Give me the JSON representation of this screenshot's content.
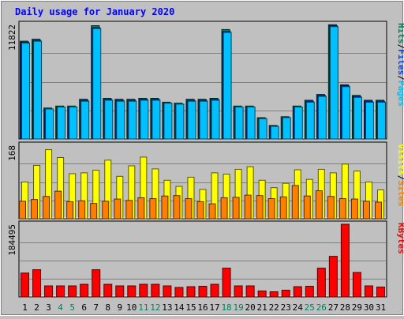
{
  "title": "Daily usage for January 2020",
  "colors": {
    "background": "#c0c0c0",
    "plot_background": "#c0c0c0",
    "title": "#0000ff",
    "hits": "#00805c",
    "files": "#0040ff",
    "pages": "#00c0ff",
    "visits": "#ffff00",
    "sites": "#ff8000",
    "kbytes": "#ff0000",
    "weekend_day": "#00805c",
    "weekday": "#000000"
  },
  "chart_data": [
    {
      "type": "bar",
      "panel": "top",
      "y_max_label": "11822",
      "ylim": [
        0,
        11822
      ],
      "legend": [
        {
          "label": "Pages",
          "color": "#00c0ff"
        },
        {
          "label": "Files",
          "color": "#0040ff"
        },
        {
          "label": "Hits",
          "color": "#00805c"
        }
      ],
      "categories": [
        "1",
        "2",
        "3",
        "4",
        "5",
        "6",
        "7",
        "8",
        "9",
        "10",
        "11",
        "12",
        "13",
        "14",
        "15",
        "16",
        "17",
        "18",
        "19",
        "20",
        "21",
        "22",
        "23",
        "24",
        "25",
        "26",
        "27",
        "28",
        "29",
        "30",
        "31"
      ],
      "series": [
        {
          "name": "Hits",
          "values": [
            10100,
            10300,
            3200,
            3400,
            3400,
            4100,
            11700,
            4200,
            4100,
            4100,
            4200,
            4200,
            3800,
            3700,
            4100,
            4100,
            4200,
            11300,
            3400,
            3400,
            2200,
            1400,
            2300,
            3400,
            4000,
            4600,
            11800,
            5600,
            4500,
            4000,
            4000
          ]
        },
        {
          "name": "Files",
          "values": [
            10000,
            10200,
            3100,
            3300,
            3300,
            4000,
            11500,
            4100,
            4000,
            4000,
            4100,
            4100,
            3700,
            3600,
            4000,
            4000,
            4100,
            11100,
            3300,
            3300,
            2100,
            1300,
            2200,
            3300,
            3900,
            4500,
            11700,
            5500,
            4400,
            3900,
            3900
          ]
        },
        {
          "name": "Pages",
          "values": [
            9900,
            10100,
            3100,
            3300,
            3300,
            3900,
            11400,
            4000,
            3900,
            3900,
            4000,
            4000,
            3700,
            3600,
            3900,
            3900,
            4000,
            11000,
            3300,
            3300,
            2100,
            1300,
            2200,
            3300,
            3800,
            4400,
            11600,
            5400,
            4300,
            3800,
            3800
          ]
        }
      ]
    },
    {
      "type": "bar",
      "panel": "middle",
      "y_max_label": "168",
      "ylim": [
        0,
        168
      ],
      "legend": [
        {
          "label": "Sites",
          "color": "#ff8000"
        },
        {
          "label": "Visits",
          "color": "#ffff00"
        }
      ],
      "categories": [
        "1",
        "2",
        "3",
        "4",
        "5",
        "6",
        "7",
        "8",
        "9",
        "10",
        "11",
        "12",
        "13",
        "14",
        "15",
        "16",
        "17",
        "18",
        "19",
        "20",
        "21",
        "22",
        "23",
        "24",
        "25",
        "26",
        "27",
        "28",
        "29",
        "30",
        "31"
      ],
      "series": [
        {
          "name": "Visits",
          "values": [
            84,
            122,
            158,
            140,
            103,
            105,
            111,
            134,
            97,
            121,
            141,
            114,
            88,
            74,
            95,
            67,
            105,
            102,
            113,
            119,
            88,
            71,
            81,
            112,
            90,
            113,
            105,
            125,
            109,
            84,
            66
          ]
        },
        {
          "name": "Sites",
          "values": [
            40,
            44,
            51,
            63,
            39,
            41,
            35,
            40,
            45,
            42,
            48,
            46,
            52,
            53,
            46,
            39,
            34,
            48,
            49,
            54,
            53,
            46,
            50,
            76,
            52,
            64,
            51,
            46,
            45,
            40,
            38
          ]
        }
      ]
    },
    {
      "type": "bar",
      "panel": "bottom",
      "y_max_label": "184495",
      "ylim": [
        0,
        184495
      ],
      "legend": [
        {
          "label": "KBytes",
          "color": "#ff0000"
        }
      ],
      "categories": [
        "1",
        "2",
        "3",
        "4",
        "5",
        "6",
        "7",
        "8",
        "9",
        "10",
        "11",
        "12",
        "13",
        "14",
        "15",
        "16",
        "17",
        "18",
        "19",
        "20",
        "21",
        "22",
        "23",
        "24",
        "25",
        "26",
        "27",
        "28",
        "29",
        "30",
        "31"
      ],
      "series": [
        {
          "name": "KBytes",
          "values": [
            60500,
            69000,
            28000,
            28000,
            28000,
            32000,
            69000,
            32000,
            28000,
            28000,
            32000,
            32000,
            28000,
            24000,
            26000,
            27000,
            32000,
            73000,
            28000,
            28000,
            15000,
            13000,
            17000,
            26000,
            27000,
            73000,
            103000,
            184495,
            62000,
            28000,
            25000
          ]
        }
      ]
    }
  ],
  "x_labels": [
    "1",
    "2",
    "3",
    "4",
    "5",
    "6",
    "7",
    "8",
    "9",
    "10",
    "11",
    "12",
    "13",
    "14",
    "15",
    "16",
    "17",
    "18",
    "19",
    "20",
    "21",
    "22",
    "23",
    "24",
    "25",
    "26",
    "27",
    "28",
    "29",
    "30",
    "31"
  ],
  "weekend_days": [
    "4",
    "5",
    "11",
    "12",
    "18",
    "19",
    "25",
    "26"
  ]
}
